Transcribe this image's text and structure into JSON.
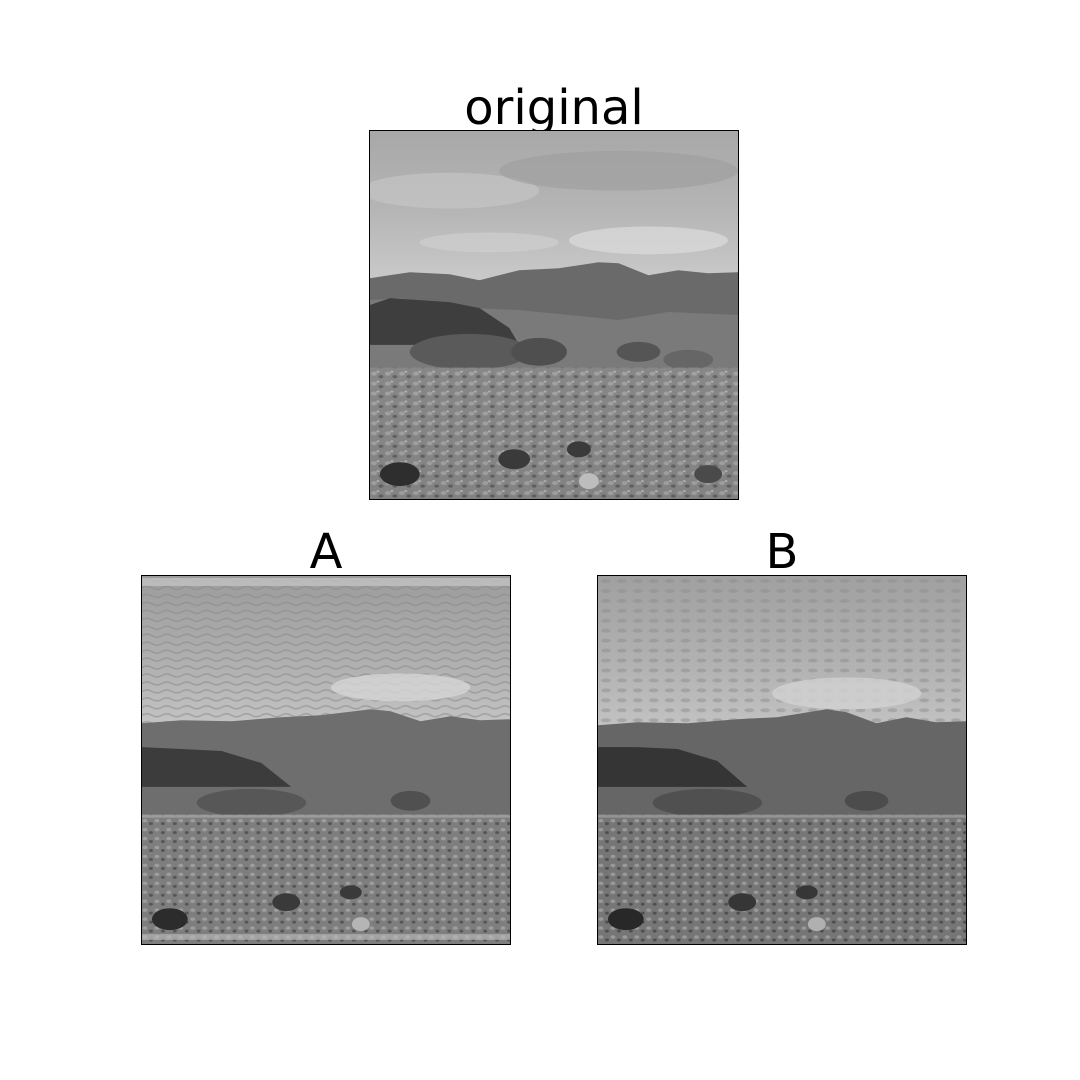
{
  "panels": {
    "original": {
      "title": "original"
    },
    "a": {
      "title": "A"
    },
    "b": {
      "title": "B"
    }
  },
  "image_style": "grayscale",
  "image_content": "desert-landscape-with-mountains-and-cloudy-sky"
}
